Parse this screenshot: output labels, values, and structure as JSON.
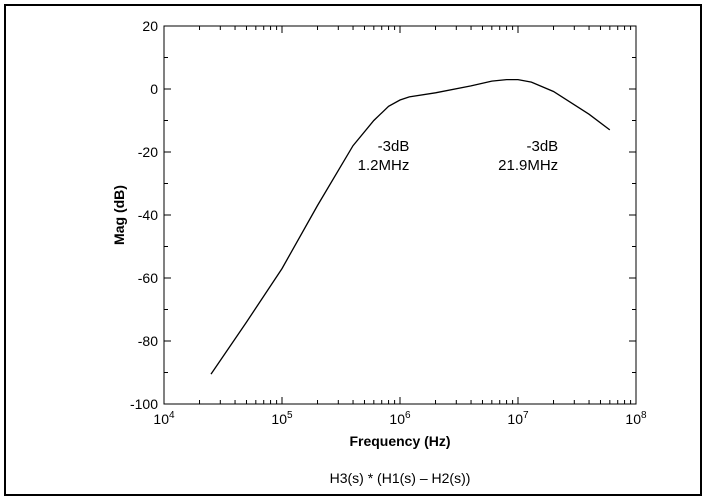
{
  "chart_data": {
    "type": "line",
    "title": "",
    "xlabel": "Frequency (Hz)",
    "ylabel": "Mag (dB)",
    "caption": "H3(s) * (H1(s) – H2(s))",
    "x_scale": "log",
    "xlim": [
      10000,
      100000000
    ],
    "ylim": [
      -100,
      20
    ],
    "x_ticks": [
      {
        "value": 10000,
        "base": "10",
        "exp": "4"
      },
      {
        "value": 100000,
        "base": "10",
        "exp": "5"
      },
      {
        "value": 1000000,
        "base": "10",
        "exp": "6"
      },
      {
        "value": 10000000,
        "base": "10",
        "exp": "7"
      },
      {
        "value": 100000000,
        "base": "10",
        "exp": "8"
      }
    ],
    "y_ticks": [
      {
        "value": 20,
        "label": "20"
      },
      {
        "value": 0,
        "label": "0"
      },
      {
        "value": -20,
        "label": "-20"
      },
      {
        "value": -40,
        "label": "-40"
      },
      {
        "value": -60,
        "label": "-60"
      },
      {
        "value": -80,
        "label": "-80"
      },
      {
        "value": -100,
        "label": "-100"
      }
    ],
    "grid": false,
    "series": [
      {
        "color": "#000000",
        "x": [
          25000,
          50000,
          100000,
          200000,
          400000,
          600000,
          800000,
          1000000,
          1200000,
          2000000,
          4000000,
          6000000,
          8000000,
          10000000,
          13000000,
          20000000,
          40000000,
          60000000
        ],
        "y": [
          -90.5,
          -74,
          -57,
          -37,
          -18,
          -10,
          -5.5,
          -3.5,
          -2.5,
          -1.2,
          1,
          2.5,
          3,
          3,
          2.2,
          -0.8,
          -8,
          -13
        ]
      }
    ],
    "annotations": [
      {
        "line1": "-3dB",
        "line2": "1.2MHz",
        "x": 1200000,
        "y": -20,
        "align": "right"
      },
      {
        "line1": "-3dB",
        "line2": "21.9MHz",
        "x": 21900000,
        "y": -20,
        "align": "right"
      }
    ]
  }
}
